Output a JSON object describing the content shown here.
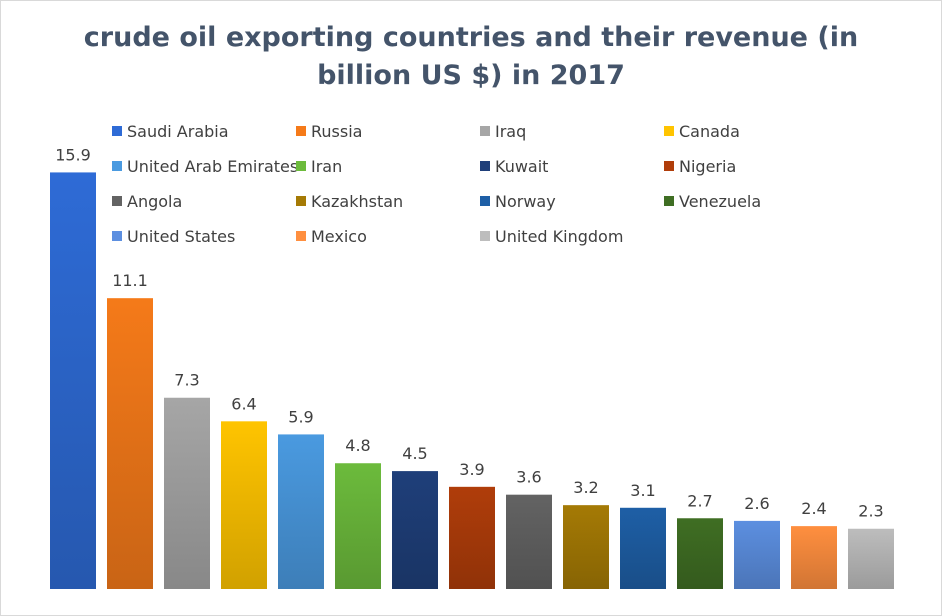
{
  "chart_data": {
    "type": "bar",
    "title_line1": "crude oil exporting countries and their revenue (in",
    "title_line2": "billion US $) in 2017",
    "xlabel": "",
    "ylabel": "",
    "ylim": [
      0,
      16
    ],
    "grid": false,
    "legend_position": "top",
    "series": [
      {
        "name": "Saudi Arabia",
        "value": 15.9,
        "color": "#2e6bd6"
      },
      {
        "name": "Russia",
        "value": 11.1,
        "color": "#f57a19"
      },
      {
        "name": "Iraq",
        "value": 7.3,
        "color": "#a6a6a6"
      },
      {
        "name": "Canada",
        "value": 6.4,
        "color": "#ffc400"
      },
      {
        "name": "United Arab Emirates",
        "value": 5.9,
        "color": "#4a9ae0"
      },
      {
        "name": "Iran",
        "value": 4.8,
        "color": "#6cbb3c"
      },
      {
        "name": "Kuwait",
        "value": 4.5,
        "color": "#1f3f7a"
      },
      {
        "name": "Nigeria",
        "value": 3.9,
        "color": "#b03d0a"
      },
      {
        "name": "Angola",
        "value": 3.6,
        "color": "#636363"
      },
      {
        "name": "Kazakhstan",
        "value": 3.2,
        "color": "#a57a05"
      },
      {
        "name": "Norway",
        "value": 3.1,
        "color": "#1e5fa6"
      },
      {
        "name": "Venezuela",
        "value": 2.7,
        "color": "#3f6e23"
      },
      {
        "name": "United States",
        "value": 2.6,
        "color": "#5c8fe0"
      },
      {
        "name": "Mexico",
        "value": 2.4,
        "color": "#ff8f3f"
      },
      {
        "name": "United Kingdom",
        "value": 2.3,
        "color": "#bdbdbd"
      }
    ]
  }
}
